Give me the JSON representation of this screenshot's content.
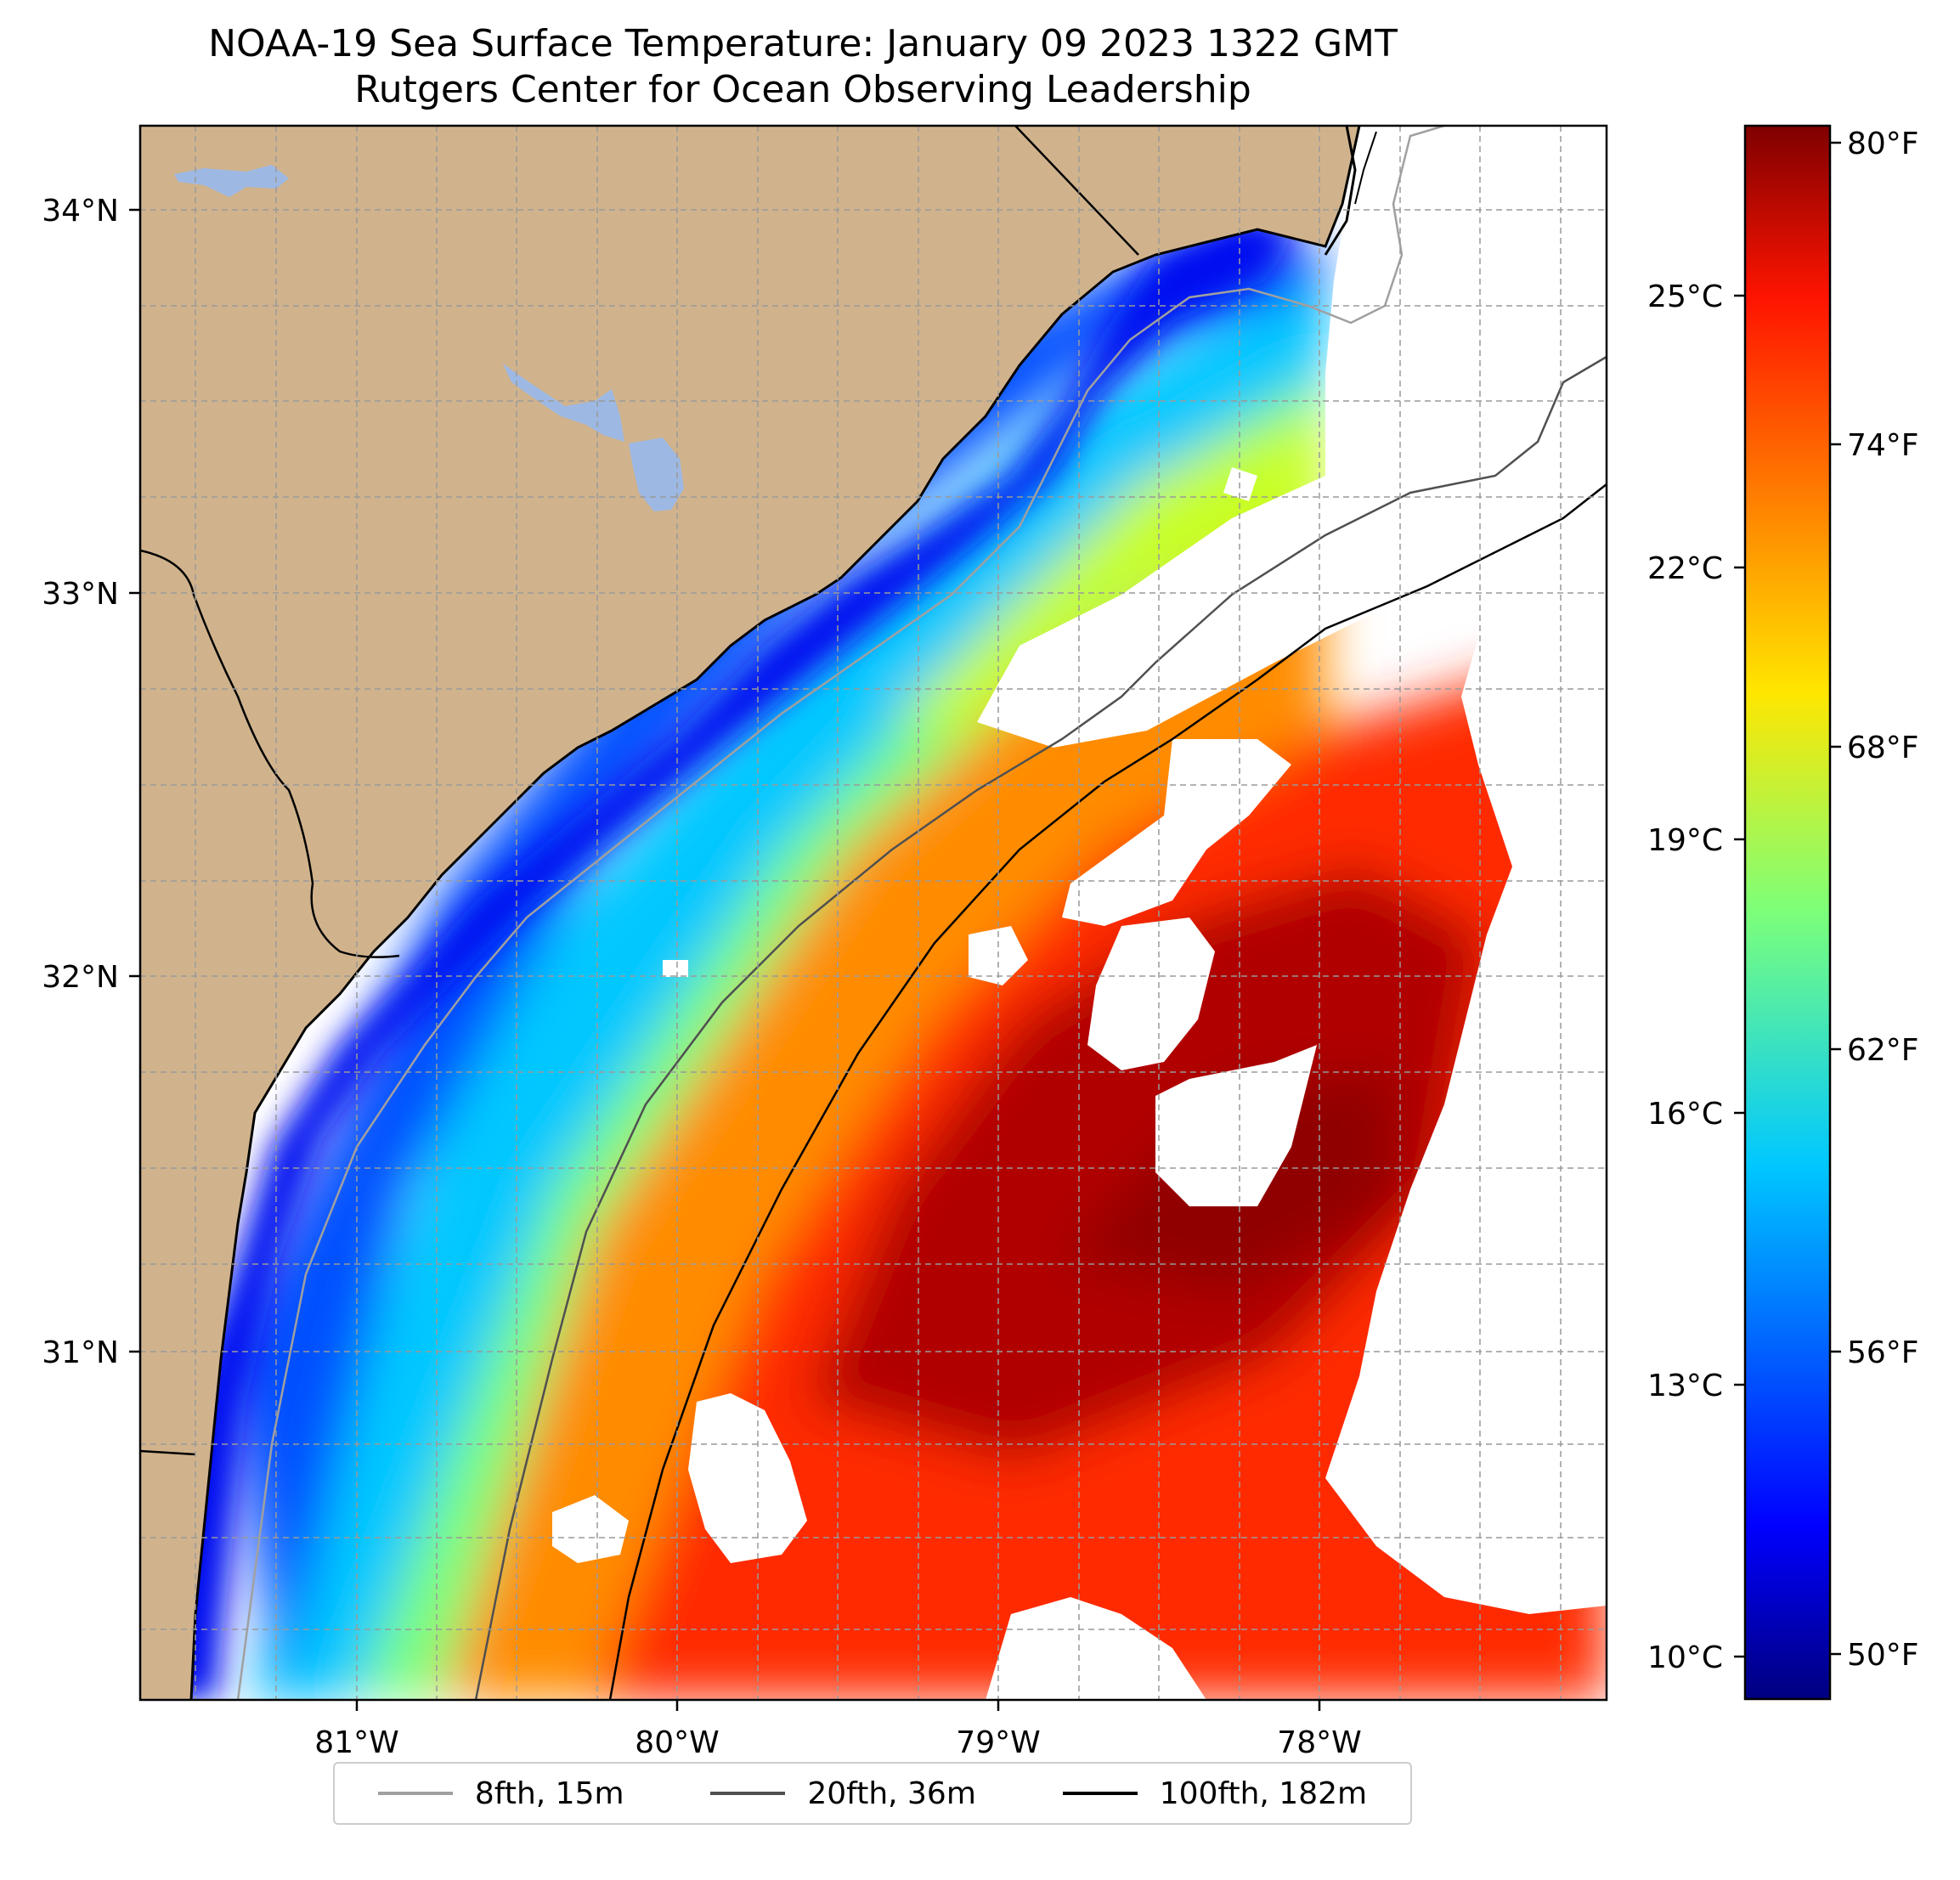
{
  "title": "NOAA-19 Sea Surface Temperature: January 09 2023 1322 GMT",
  "subtitle": "Rutgers Center for Ocean Observing Leadership",
  "map": {
    "lon_ticks": [
      "81°W",
      "80°W",
      "79°W",
      "78°W"
    ],
    "lat_ticks": [
      "34°N",
      "33°N",
      "32°N",
      "31°N"
    ],
    "colors": {
      "land": "#d0b38d",
      "lake": "#9db8e3",
      "ocean_no_data": "#ffffff"
    }
  },
  "colorbar": {
    "celsius_ticks": [
      "25°C",
      "22°C",
      "19°C",
      "16°C",
      "13°C",
      "10°C"
    ],
    "fahrenheit_ticks": [
      "80°F",
      "74°F",
      "68°F",
      "62°F",
      "56°F",
      "50°F"
    ],
    "colormap": "jet"
  },
  "legend": [
    {
      "label": "8fth, 15m",
      "color": "#a0a0a0"
    },
    {
      "label": "20fth, 36m",
      "color": "#505050"
    },
    {
      "label": "100fth, 182m",
      "color": "#000000"
    }
  ]
}
